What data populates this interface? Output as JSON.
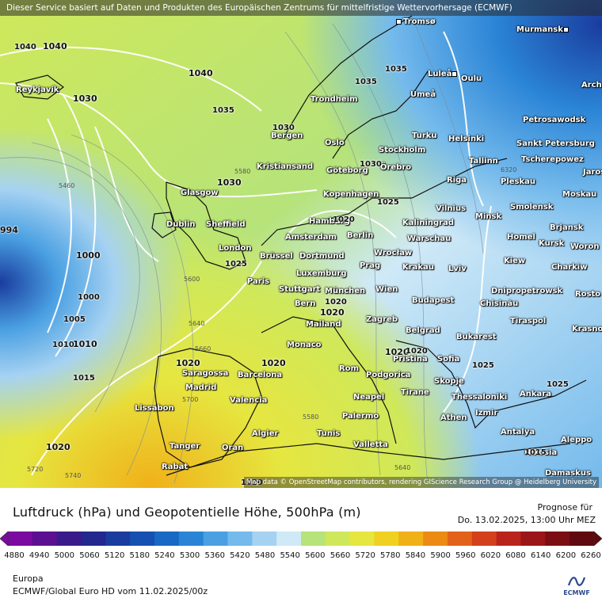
{
  "banner": "Dieser Service basiert auf Daten und Produkten des Europäischen Zentrums für mittelfristige Wettervorhersage (ECMWF)",
  "attribution": "Map data © OpenStreetMap contributors, rendering GIScience Research Group @ Heidelberg University",
  "title": "Luftdruck (hPa) und Geopotentielle Höhe, 500hPa (m)",
  "forecast_label": "Prognose für",
  "forecast_date": "Do. 13.02.2025, 13:00 Uhr MEZ",
  "region": "Europa",
  "model_run": "ECMWF/Global Euro HD vom  11.02.2025/00z",
  "logo_text": "ECMWF",
  "colorbar": {
    "ticks": [
      "4880",
      "4940",
      "5000",
      "5060",
      "5120",
      "5180",
      "5240",
      "5300",
      "5360",
      "5420",
      "5480",
      "5540",
      "5600",
      "5660",
      "5720",
      "5780",
      "5840",
      "5900",
      "5960",
      "6020",
      "6080",
      "6140",
      "6200",
      "6260"
    ],
    "colors": [
      "#7a0aa0",
      "#5a1090",
      "#3a1a8a",
      "#22288e",
      "#1a3c9e",
      "#1650b0",
      "#1868c4",
      "#2a84d6",
      "#4aa0e2",
      "#74baec",
      "#a6d2f2",
      "#cfe9f7",
      "#b6e37a",
      "#cfe85a",
      "#e6e640",
      "#f0d020",
      "#f0b018",
      "#ec8a14",
      "#e2621a",
      "#d2401c",
      "#b8241c",
      "#9a1618",
      "#7a0e12",
      "#5e0a0e"
    ]
  },
  "cities": [
    {
      "name": "Tromsø",
      "icon": "city-dot"
    },
    {
      "name": "Murmansk",
      "icon": "city-dot"
    },
    {
      "name": "Reykjavík",
      "icon": "city-dot"
    },
    {
      "name": "Luleå",
      "icon": "city-dot"
    },
    {
      "name": "Oulu",
      "icon": "city-dot"
    },
    {
      "name": "Arch",
      "icon": "city-dot"
    },
    {
      "name": "Umeå",
      "icon": "city-dot"
    },
    {
      "name": "Trondheim",
      "icon": "city-dot"
    },
    {
      "name": "Petrosawodsk",
      "icon": "city-dot"
    },
    {
      "name": "Bergen",
      "icon": "city-dot"
    },
    {
      "name": "Turku",
      "icon": "city-dot"
    },
    {
      "name": "Helsinki",
      "icon": "city-dot"
    },
    {
      "name": "Oslo",
      "icon": "city-dot"
    },
    {
      "name": "Sankt Petersburg",
      "icon": "city-dot"
    },
    {
      "name": "Stockholm",
      "icon": "city-dot"
    },
    {
      "name": "Tallinn",
      "icon": "city-dot"
    },
    {
      "name": "Tscherepowez",
      "icon": "city-dot"
    },
    {
      "name": "Kristiansand",
      "icon": "city-dot"
    },
    {
      "name": "Göteborg",
      "icon": "city-dot"
    },
    {
      "name": "Örebro",
      "icon": "city-dot"
    },
    {
      "name": "Jaros",
      "icon": "city-dot"
    },
    {
      "name": "Riga",
      "icon": "city-dot"
    },
    {
      "name": "Pleskau",
      "icon": "city-dot"
    },
    {
      "name": "Glasgow",
      "icon": "city-dot"
    },
    {
      "name": "Kopenhagen",
      "icon": "city-dot"
    },
    {
      "name": "Moskau",
      "icon": "city-dot"
    },
    {
      "name": "Vilnius",
      "icon": "city-dot"
    },
    {
      "name": "Minsk",
      "icon": "city-dot"
    },
    {
      "name": "Smolensk",
      "icon": "city-dot"
    },
    {
      "name": "Hamburg",
      "icon": "city-dot"
    },
    {
      "name": "Dublin",
      "icon": "city-dot"
    },
    {
      "name": "Sheffield",
      "icon": "city-dot"
    },
    {
      "name": "Kaliningrad",
      "icon": "city-dot"
    },
    {
      "name": "Berlin",
      "icon": "city-dot"
    },
    {
      "name": "Brjansk",
      "icon": "city-dot"
    },
    {
      "name": "Amsterdam",
      "icon": "city-dot"
    },
    {
      "name": "Warschau",
      "icon": "city-dot"
    },
    {
      "name": "Homel",
      "icon": "city-dot"
    },
    {
      "name": "Kursk",
      "icon": "city-dot"
    },
    {
      "name": "Woron",
      "icon": "city-dot"
    },
    {
      "name": "London",
      "icon": "city-dot"
    },
    {
      "name": "Brüssel",
      "icon": "city-dot"
    },
    {
      "name": "Dortmund",
      "icon": "city-dot"
    },
    {
      "name": "Wrocław",
      "icon": "city-dot"
    },
    {
      "name": "Prag",
      "icon": "city-dot"
    },
    {
      "name": "Krakau",
      "icon": "city-dot"
    },
    {
      "name": "Kiew",
      "icon": "city-dot"
    },
    {
      "name": "Charkiw",
      "icon": "city-dot"
    },
    {
      "name": "Luxemburg",
      "icon": "city-dot"
    },
    {
      "name": "Lviv",
      "icon": "city-dot"
    },
    {
      "name": "Paris",
      "icon": "city-dot"
    },
    {
      "name": "Stuttgart",
      "icon": "city-dot"
    },
    {
      "name": "München",
      "icon": "city-dot"
    },
    {
      "name": "Wien",
      "icon": "city-dot"
    },
    {
      "name": "Dnipropetrowsk",
      "icon": "city-dot"
    },
    {
      "name": "Chisinău",
      "icon": "city-dot"
    },
    {
      "name": "Rosto",
      "icon": "city-dot"
    },
    {
      "name": "Bern",
      "icon": "city-dot"
    },
    {
      "name": "Budapest",
      "icon": "city-dot"
    },
    {
      "name": "Mailand",
      "icon": "city-dot"
    },
    {
      "name": "Zagreb",
      "icon": "city-dot"
    },
    {
      "name": "Tiraspol",
      "icon": "city-dot"
    },
    {
      "name": "Krasno",
      "icon": "city-dot"
    },
    {
      "name": "Belgrad",
      "icon": "city-dot"
    },
    {
      "name": "Bukarest",
      "icon": "city-dot"
    },
    {
      "name": "Monaco",
      "icon": "city-dot"
    },
    {
      "name": "Pristina",
      "icon": "city-dot"
    },
    {
      "name": "Sofia",
      "icon": "city-dot"
    },
    {
      "name": "Saragossa",
      "icon": "city-dot"
    },
    {
      "name": "Barcelona",
      "icon": "city-dot"
    },
    {
      "name": "Rom",
      "icon": "city-dot"
    },
    {
      "name": "Podgorica",
      "icon": "city-dot"
    },
    {
      "name": "Madrid",
      "icon": "city-dot"
    },
    {
      "name": "Skopje",
      "icon": "city-dot"
    },
    {
      "name": "Tirane",
      "icon": "city-dot"
    },
    {
      "name": "Neapel",
      "icon": "city-dot"
    },
    {
      "name": "Ankara",
      "icon": "city-dot"
    },
    {
      "name": "Valencia",
      "icon": "city-dot"
    },
    {
      "name": "Thessaloniki",
      "icon": "city-dot"
    },
    {
      "name": "Lissabon",
      "icon": "city-dot"
    },
    {
      "name": "Izmir",
      "icon": "city-dot"
    },
    {
      "name": "Palermo",
      "icon": "city-dot"
    },
    {
      "name": "Athen",
      "icon": "city-dot"
    },
    {
      "name": "Antalya",
      "icon": "city-dot"
    },
    {
      "name": "Algier",
      "icon": "city-dot"
    },
    {
      "name": "Tunis",
      "icon": "city-dot"
    },
    {
      "name": "Aleppo",
      "icon": "city-dot"
    },
    {
      "name": "Tanger",
      "icon": "city-dot"
    },
    {
      "name": "Oran",
      "icon": "city-dot"
    },
    {
      "name": "Valletta",
      "icon": "city-dot"
    },
    {
      "name": "Nikosia",
      "icon": "city-dot"
    },
    {
      "name": "Rabat",
      "icon": "city-dot"
    },
    {
      "name": "Damaskus",
      "icon": "city-dot"
    }
  ],
  "pressure_labels": [
    "1040",
    "1040",
    "1040",
    "1030",
    "1035",
    "1035",
    "1030",
    "1030",
    "1030",
    "994",
    "1000",
    "1000",
    "1005",
    "1010",
    "1010",
    "1015",
    "1020",
    "1020",
    "1020",
    "1035",
    "1025",
    "1025",
    "1020",
    "1020",
    "1020",
    "1020",
    "1025",
    "1025",
    "1015",
    "1020",
    "1020"
  ],
  "geopotential_labels": [
    "5460",
    "5580",
    "5600",
    "5640",
    "5660",
    "5700",
    "5720",
    "5740",
    "5580",
    "5640",
    "6320"
  ]
}
